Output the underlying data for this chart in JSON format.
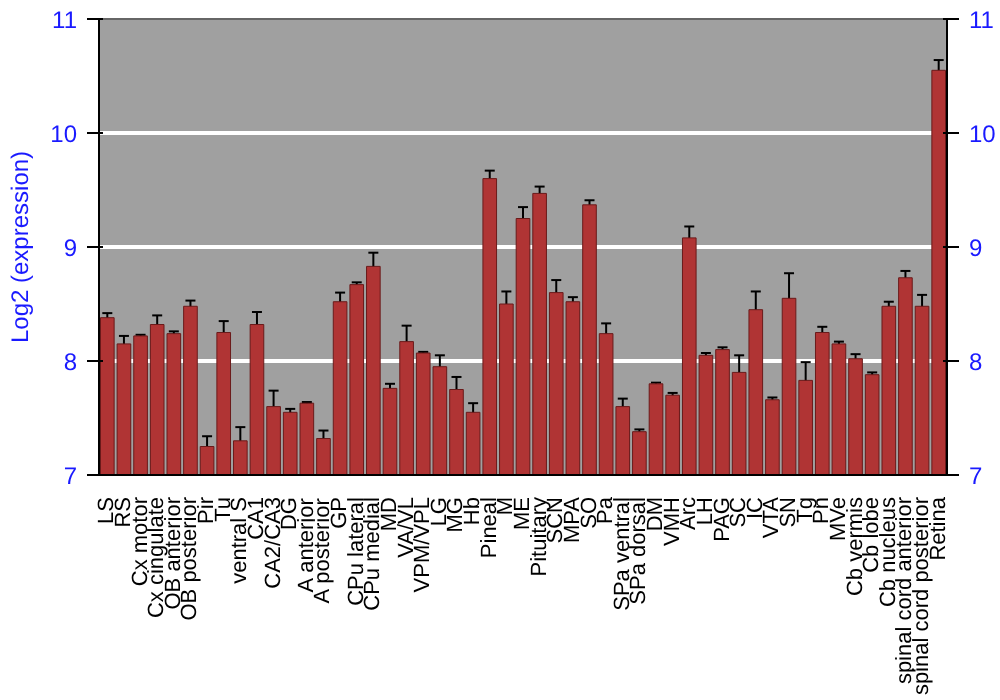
{
  "chart_data": {
    "type": "bar",
    "ylabel": "Log2 (expression)",
    "color": "#b03434",
    "categories": [
      "LS",
      "RS",
      "Cx motor",
      "Cx cingulate",
      "OB anterior",
      "OB posterior",
      "Pir",
      "Tu",
      "ventral S",
      "CA1",
      "CA2/CA3",
      "DG",
      "A anterior",
      "A posterior",
      "GP",
      "CPu lateral",
      "CPu medial",
      "MD",
      "VA/VL",
      "VPM/VPL",
      "LG",
      "MG",
      "Hb",
      "Pineal",
      "M",
      "ME",
      "Pituitary",
      "SCN",
      "MPA",
      "SO",
      "Pa",
      "SPa ventral",
      "SPa dorsal",
      "DM",
      "VMH",
      "Arc",
      "LH",
      "PAG",
      "SC",
      "IC",
      "VTA",
      "SN",
      "Tg",
      "Pn",
      "MVe",
      "Cb vermis",
      "Cb lobe",
      "Cb nucleus",
      "spinal cord anterior",
      "spinal cord posterior",
      "Retina"
    ],
    "values": [
      8.38,
      8.15,
      8.22,
      8.32,
      8.24,
      8.48,
      7.25,
      8.25,
      7.3,
      8.32,
      7.6,
      7.55,
      7.63,
      7.32,
      8.52,
      8.67,
      8.83,
      7.76,
      8.17,
      8.07,
      7.95,
      7.75,
      7.55,
      9.6,
      8.5,
      9.25,
      9.47,
      8.6,
      8.52,
      9.37,
      8.24,
      7.6,
      7.38,
      7.8,
      7.7,
      9.08,
      8.05,
      8.1,
      7.9,
      8.45,
      7.66,
      8.55,
      7.83,
      8.25,
      8.15,
      8.02,
      7.88,
      8.48,
      8.73,
      8.48,
      10.55
    ],
    "errors": [
      0.04,
      0.07,
      0.01,
      0.08,
      0.02,
      0.05,
      0.09,
      0.1,
      0.12,
      0.11,
      0.14,
      0.03,
      0.01,
      0.07,
      0.08,
      0.02,
      0.12,
      0.04,
      0.14,
      0.01,
      0.1,
      0.11,
      0.08,
      0.07,
      0.11,
      0.1,
      0.06,
      0.11,
      0.04,
      0.04,
      0.09,
      0.07,
      0.02,
      0.01,
      0.02,
      0.1,
      0.02,
      0.02,
      0.15,
      0.16,
      0.02,
      0.22,
      0.16,
      0.05,
      0.02,
      0.04,
      0.02,
      0.04,
      0.06,
      0.1,
      0.09
    ],
    "ylim": [
      7,
      11
    ],
    "yticks": [
      7,
      8,
      9,
      10,
      11
    ],
    "y2lim": [
      7,
      11
    ],
    "y2ticks": [
      7,
      8,
      9,
      10,
      11
    ],
    "grid": "y"
  }
}
